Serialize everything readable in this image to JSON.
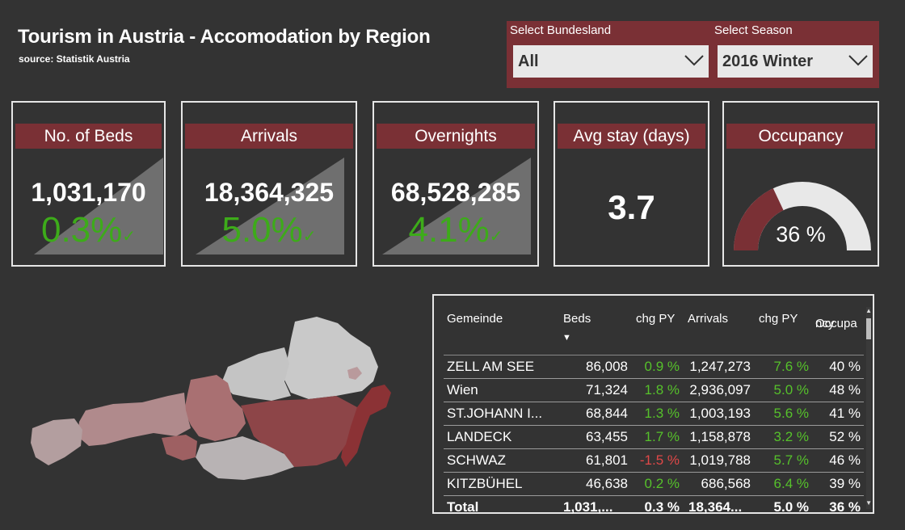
{
  "header": {
    "title": "Tourism in Austria - Accomodation by Region",
    "source": "source: Statistik Austria"
  },
  "slicers": {
    "bundesland": {
      "label": "Select Bundesland",
      "value": "All"
    },
    "season": {
      "label": "Select Season",
      "value": "2016 Winter"
    }
  },
  "kpis": {
    "beds": {
      "title": "No. of Beds",
      "value": "1,031,170",
      "change": "0.3%"
    },
    "arrivals": {
      "title": "Arrivals",
      "value": "18,364,325",
      "change": "5.0%"
    },
    "overnights": {
      "title": "Overnights",
      "value": "68,528,285",
      "change": "4.1%"
    },
    "avgstay": {
      "title": "Avg stay (days)",
      "value": "3.7"
    },
    "occupancy": {
      "title": "Occupancy",
      "value": "36 %",
      "fraction": 0.36
    }
  },
  "colors": {
    "accent": "#7a3035",
    "positive": "#56c12b",
    "negative": "#e04848",
    "background": "#333333"
  },
  "table": {
    "headers": {
      "gemeinde": "Gemeinde",
      "beds": "Beds",
      "chg1": "chg PY",
      "arrivals": "Arrivals",
      "chg2": "chg PY",
      "occ_a": "Occupa",
      "occ_b": "ncy"
    },
    "rows": [
      {
        "name": "ZELL AM SEE",
        "beds": "86,008",
        "chg1": "0.9 %",
        "arrivals": "1,247,273",
        "chg2": "7.6 %",
        "occ": "40 %"
      },
      {
        "name": "Wien",
        "beds": "71,324",
        "chg1": "1.8 %",
        "arrivals": "2,936,097",
        "chg2": "5.0 %",
        "occ": "48 %"
      },
      {
        "name": "ST.JOHANN I...",
        "beds": "68,844",
        "chg1": "1.3 %",
        "arrivals": "1,003,193",
        "chg2": "5.6 %",
        "occ": "41 %"
      },
      {
        "name": "LANDECK",
        "beds": "63,455",
        "chg1": "1.7 %",
        "arrivals": "1,158,878",
        "chg2": "3.2 %",
        "occ": "52 %"
      },
      {
        "name": "SCHWAZ",
        "beds": "61,801",
        "chg1": "-1.5 %",
        "arrivals": "1,019,788",
        "chg2": "5.7 %",
        "occ": "46 %"
      },
      {
        "name": "KITZBÜHEL",
        "beds": "46,638",
        "chg1": "0.2 %",
        "arrivals": "686,568",
        "chg2": "6.4 %",
        "occ": "39 %"
      }
    ],
    "total": {
      "name": "Total",
      "beds": "1,031,...",
      "chg1": "0.3 %",
      "arrivals": "18,364...",
      "chg2": "5.0 %",
      "occ": "36 %"
    }
  }
}
